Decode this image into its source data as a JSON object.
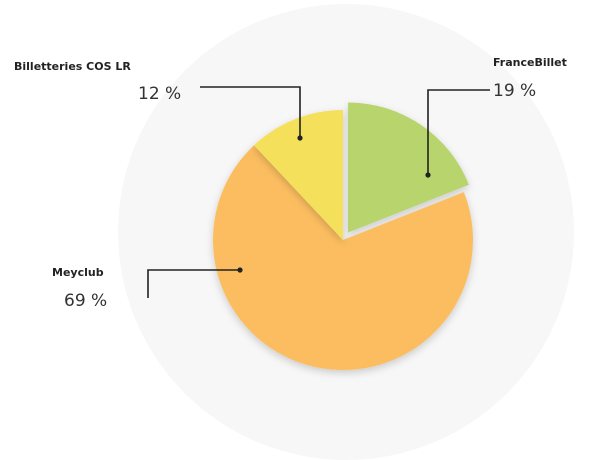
{
  "chart_data": {
    "type": "pie",
    "categories": [
      "FranceBillet",
      "Meyclub",
      "Billetteries COS LR"
    ],
    "values": [
      19,
      69,
      12
    ],
    "value_labels": [
      "19 %",
      "69 %",
      "12 %"
    ],
    "colors": [
      "#b8d46c",
      "#fbbd5e",
      "#f5e05c"
    ],
    "explode": [
      true,
      false,
      false
    ]
  }
}
